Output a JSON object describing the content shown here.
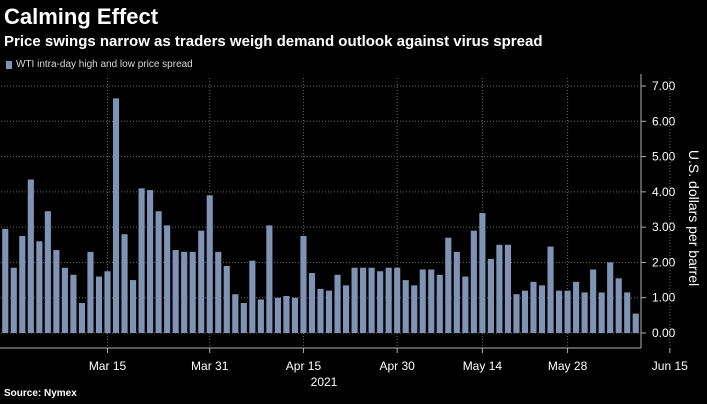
{
  "title": "Calming Effect",
  "subtitle": "Price swings narrow as traders weigh demand outlook against virus spread",
  "source": "Source: Nymex",
  "colors": {
    "bar": "#7f93b4",
    "grid": "#6a6a6a",
    "axis": "#b0b0b0",
    "background": "#000000"
  },
  "chart_data": {
    "type": "bar",
    "legend": "WTI intra-day high and low price spread",
    "ylabel": "U.S. dollars per barrel",
    "ylim": [
      0,
      7
    ],
    "yticks": [
      "0.00",
      "1.00",
      "2.00",
      "3.00",
      "4.00",
      "5.00",
      "6.00",
      "7.00"
    ],
    "x_tick_labels": [
      {
        "label": "Mar 15",
        "index": 12
      },
      {
        "label": "Mar 31",
        "index": 24
      },
      {
        "label": "Apr 15",
        "index": 35
      },
      {
        "label": "Apr 30",
        "index": 46
      },
      {
        "label": "May 14",
        "index": 56
      },
      {
        "label": "May 28",
        "index": 66
      },
      {
        "label": "Jun 15",
        "index": 78
      }
    ],
    "x_year_label": "2021",
    "values": [
      2.95,
      1.85,
      2.75,
      4.35,
      2.6,
      3.45,
      2.35,
      1.85,
      1.65,
      0.85,
      2.3,
      1.6,
      1.75,
      6.65,
      2.8,
      1.5,
      4.1,
      4.05,
      3.45,
      3.05,
      2.35,
      2.3,
      2.3,
      2.9,
      3.9,
      2.3,
      1.9,
      1.1,
      0.85,
      2.05,
      0.95,
      3.05,
      1.0,
      1.05,
      1.0,
      2.75,
      1.7,
      1.25,
      1.2,
      1.65,
      1.35,
      1.85,
      1.85,
      1.85,
      1.75,
      1.85,
      1.85,
      1.5,
      1.35,
      1.8,
      1.8,
      1.65,
      2.7,
      2.3,
      1.6,
      2.9,
      3.4,
      2.1,
      2.5,
      2.5,
      1.1,
      1.2,
      1.45,
      1.35,
      2.45,
      1.2,
      1.2,
      1.45,
      1.15,
      1.8,
      1.15,
      2.0,
      1.55,
      1.15,
      0.55
    ]
  }
}
